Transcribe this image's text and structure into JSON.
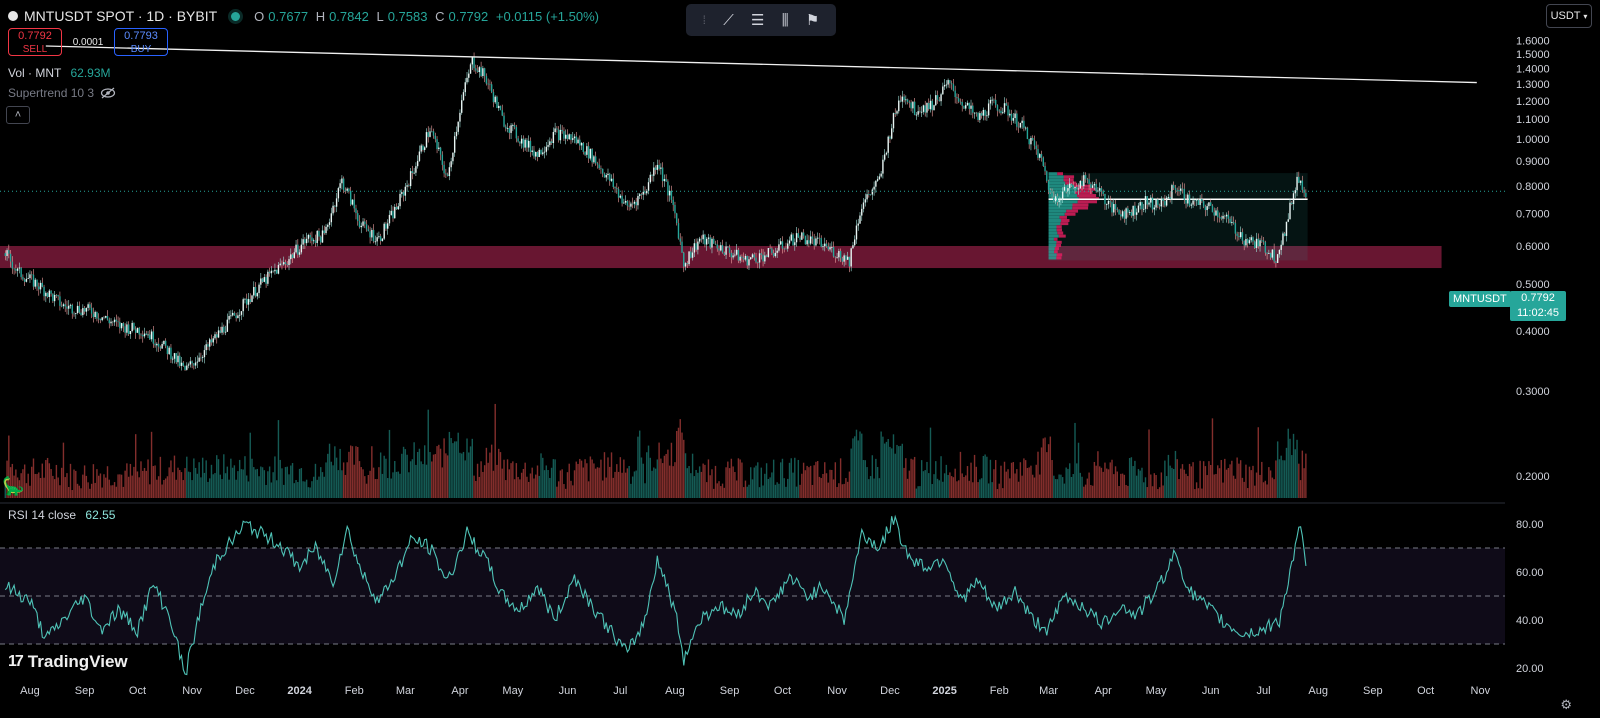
{
  "header": {
    "symbol": "MNTUSDT SPOT · 1D · BYBIT",
    "open_label": "O",
    "open": "0.7677",
    "high_label": "H",
    "high": "0.7842",
    "low_label": "L",
    "low": "0.7583",
    "close_label": "C",
    "close": "0.7792",
    "change": "+0.0115 (+1.50%)"
  },
  "trade": {
    "sell_price": "0.7792",
    "sell_label": "SELL",
    "spread": "0.0001",
    "buy_price": "0.7793",
    "buy_label": "BUY"
  },
  "volume_indicator": {
    "label": "Vol · MNT",
    "value": "62.93M"
  },
  "supertrend_label": "Supertrend 10 3",
  "currency": "USDT",
  "price_tag": {
    "symbol": "MNTUSDT",
    "price": "0.7792",
    "countdown": "11:02:45"
  },
  "rsi_indicator": {
    "label": "RSI 14 close",
    "value": "62.55"
  },
  "brand": "TradingView",
  "colors": {
    "up": "#26a69a",
    "down": "#ef5350",
    "support_zone": "#7a1a3a",
    "background": "#000000"
  },
  "chart_data": [
    {
      "type": "candlestick",
      "title": "MNTUSDT SPOT · 1D · BYBIT",
      "y_scale": "log",
      "ylim": [
        0.18,
        1.7
      ],
      "y_ticks": [
        0.2,
        0.3,
        0.4,
        0.5,
        0.6,
        0.7,
        0.8,
        0.9,
        1.0,
        1.1,
        1.2,
        1.3,
        1.4,
        1.5,
        1.6
      ],
      "y_tick_labels": [
        "0.2000",
        "0.3000",
        "0.4000",
        "0.5000",
        "0.6000",
        "0.7000",
        "0.8000",
        "0.9000",
        "1.0000",
        "1.1000",
        "1.2000",
        "1.3000",
        "1.4000",
        "1.5000",
        "1.6000"
      ],
      "x_tick_labels": [
        "Aug",
        "Sep",
        "Oct",
        "Nov",
        "Dec",
        "2024",
        "Feb",
        "Mar",
        "Apr",
        "May",
        "Jun",
        "Jul",
        "Aug",
        "Sep",
        "Oct",
        "Nov",
        "Dec",
        "2025",
        "Feb",
        "Mar",
        "Apr",
        "May",
        "Jun",
        "Jul",
        "Aug",
        "Sep",
        "Oct",
        "Nov"
      ],
      "x_tick_dates": [
        "2023-08-01",
        "2023-09-01",
        "2023-10-01",
        "2023-11-01",
        "2023-12-01",
        "2024-01-01",
        "2024-02-01",
        "2024-03-01",
        "2024-04-01",
        "2024-05-01",
        "2024-06-01",
        "2024-07-01",
        "2024-08-01",
        "2024-09-01",
        "2024-10-01",
        "2024-11-01",
        "2024-12-01",
        "2025-01-01",
        "2025-02-01",
        "2025-03-01",
        "2025-04-01",
        "2025-05-01",
        "2025-06-01",
        "2025-07-01",
        "2025-08-01",
        "2025-09-01",
        "2025-10-01",
        "2025-11-01"
      ],
      "xlim": [
        "2023-07-15",
        "2025-11-15"
      ],
      "price_series": [
        [
          "2023-07-18",
          0.58
        ],
        [
          "2023-07-25",
          0.53
        ],
        [
          "2023-08-05",
          0.5
        ],
        [
          "2023-08-20",
          0.45
        ],
        [
          "2023-09-05",
          0.44
        ],
        [
          "2023-09-20",
          0.41
        ],
        [
          "2023-10-05",
          0.4
        ],
        [
          "2023-10-20",
          0.36
        ],
        [
          "2023-10-28",
          0.33
        ],
        [
          "2023-11-10",
          0.37
        ],
        [
          "2023-11-25",
          0.43
        ],
        [
          "2023-12-10",
          0.5
        ],
        [
          "2023-12-25",
          0.56
        ],
        [
          "2024-01-05",
          0.62
        ],
        [
          "2024-01-15",
          0.63
        ],
        [
          "2024-01-25",
          0.82
        ],
        [
          "2024-02-05",
          0.66
        ],
        [
          "2024-02-15",
          0.62
        ],
        [
          "2024-02-25",
          0.72
        ],
        [
          "2024-03-05",
          0.85
        ],
        [
          "2024-03-15",
          1.05
        ],
        [
          "2024-03-25",
          0.82
        ],
        [
          "2024-04-02",
          1.2
        ],
        [
          "2024-04-08",
          1.45
        ],
        [
          "2024-04-15",
          1.35
        ],
        [
          "2024-04-25",
          1.1
        ],
        [
          "2024-05-05",
          1.0
        ],
        [
          "2024-05-15",
          0.93
        ],
        [
          "2024-05-25",
          1.03
        ],
        [
          "2024-06-05",
          1.0
        ],
        [
          "2024-06-15",
          0.92
        ],
        [
          "2024-06-25",
          0.82
        ],
        [
          "2024-07-05",
          0.72
        ],
        [
          "2024-07-15",
          0.78
        ],
        [
          "2024-07-22",
          0.9
        ],
        [
          "2024-08-01",
          0.7
        ],
        [
          "2024-08-06",
          0.55
        ],
        [
          "2024-08-15",
          0.62
        ],
        [
          "2024-08-25",
          0.6
        ],
        [
          "2024-09-10",
          0.56
        ],
        [
          "2024-09-25",
          0.58
        ],
        [
          "2024-10-10",
          0.63
        ],
        [
          "2024-10-25",
          0.6
        ],
        [
          "2024-11-08",
          0.56
        ],
        [
          "2024-11-15",
          0.73
        ],
        [
          "2024-11-25",
          0.82
        ],
        [
          "2024-12-03",
          1.1
        ],
        [
          "2024-12-08",
          1.25
        ],
        [
          "2024-12-15",
          1.15
        ],
        [
          "2024-12-25",
          1.18
        ],
        [
          "2025-01-03",
          1.3
        ],
        [
          "2025-01-10",
          1.2
        ],
        [
          "2025-01-20",
          1.1
        ],
        [
          "2025-01-28",
          1.18
        ],
        [
          "2025-02-05",
          1.15
        ],
        [
          "2025-02-15",
          1.05
        ],
        [
          "2025-02-25",
          0.9
        ],
        [
          "2025-03-03",
          0.75
        ],
        [
          "2025-03-10",
          0.78
        ],
        [
          "2025-03-20",
          0.82
        ],
        [
          "2025-03-28",
          0.8
        ],
        [
          "2025-04-05",
          0.72
        ],
        [
          "2025-04-15",
          0.7
        ],
        [
          "2025-04-25",
          0.74
        ],
        [
          "2025-05-05",
          0.73
        ],
        [
          "2025-05-12",
          0.8
        ],
        [
          "2025-05-20",
          0.74
        ],
        [
          "2025-06-01",
          0.72
        ],
        [
          "2025-06-10",
          0.68
        ],
        [
          "2025-06-20",
          0.62
        ],
        [
          "2025-07-01",
          0.6
        ],
        [
          "2025-07-08",
          0.57
        ],
        [
          "2025-07-14",
          0.66
        ],
        [
          "2025-07-20",
          0.83
        ],
        [
          "2025-07-25",
          0.7792
        ]
      ],
      "trendline": [
        [
          "2023-08-10",
          1.56
        ],
        [
          "2025-10-30",
          1.31
        ]
      ],
      "support_zone": {
        "from": "2023-07-15",
        "to": "2025-10-10",
        "low": 0.54,
        "high": 0.6
      },
      "volume_profile_range": {
        "from": "2025-03-01",
        "to": "2025-07-26",
        "low": 0.56,
        "high": 0.85,
        "poc": 0.75
      },
      "last_price": 0.7792
    },
    {
      "type": "line",
      "title": "RSI 14 close",
      "ylim": [
        15,
        85
      ],
      "y_ticks": [
        20,
        40,
        60,
        80
      ],
      "y_tick_labels": [
        "20.00",
        "40.00",
        "60.00",
        "80.00"
      ],
      "reference_lines": [
        30,
        50,
        70
      ],
      "series": [
        [
          "2023-07-18",
          54
        ],
        [
          "2023-08-01",
          48
        ],
        [
          "2023-08-10",
          32
        ],
        [
          "2023-08-20",
          40
        ],
        [
          "2023-09-01",
          50
        ],
        [
          "2023-09-10",
          36
        ],
        [
          "2023-09-20",
          44
        ],
        [
          "2023-10-01",
          36
        ],
        [
          "2023-10-10",
          55
        ],
        [
          "2023-10-20",
          40
        ],
        [
          "2023-10-28",
          17
        ],
        [
          "2023-11-05",
          42
        ],
        [
          "2023-11-15",
          66
        ],
        [
          "2023-11-25",
          74
        ],
        [
          "2023-12-01",
          80
        ],
        [
          "2023-12-10",
          76
        ],
        [
          "2023-12-20",
          72
        ],
        [
          "2024-01-01",
          62
        ],
        [
          "2024-01-10",
          70
        ],
        [
          "2024-01-20",
          56
        ],
        [
          "2024-01-28",
          78
        ],
        [
          "2024-02-05",
          60
        ],
        [
          "2024-02-15",
          48
        ],
        [
          "2024-02-25",
          60
        ],
        [
          "2024-03-05",
          74
        ],
        [
          "2024-03-15",
          70
        ],
        [
          "2024-03-25",
          56
        ],
        [
          "2024-04-05",
          76
        ],
        [
          "2024-04-15",
          66
        ],
        [
          "2024-04-25",
          50
        ],
        [
          "2024-05-05",
          44
        ],
        [
          "2024-05-15",
          54
        ],
        [
          "2024-05-25",
          40
        ],
        [
          "2024-06-05",
          58
        ],
        [
          "2024-06-15",
          46
        ],
        [
          "2024-06-25",
          36
        ],
        [
          "2024-07-05",
          26
        ],
        [
          "2024-07-15",
          40
        ],
        [
          "2024-07-22",
          66
        ],
        [
          "2024-08-01",
          44
        ],
        [
          "2024-08-06",
          24
        ],
        [
          "2024-08-15",
          40
        ],
        [
          "2024-08-25",
          46
        ],
        [
          "2024-09-05",
          42
        ],
        [
          "2024-09-15",
          52
        ],
        [
          "2024-09-25",
          46
        ],
        [
          "2024-10-05",
          58
        ],
        [
          "2024-10-15",
          50
        ],
        [
          "2024-10-25",
          54
        ],
        [
          "2024-11-05",
          40
        ],
        [
          "2024-11-15",
          76
        ],
        [
          "2024-11-25",
          70
        ],
        [
          "2024-12-03",
          82
        ],
        [
          "2024-12-12",
          66
        ],
        [
          "2024-12-22",
          62
        ],
        [
          "2025-01-01",
          66
        ],
        [
          "2025-01-10",
          48
        ],
        [
          "2025-01-20",
          56
        ],
        [
          "2025-01-30",
          44
        ],
        [
          "2025-02-10",
          52
        ],
        [
          "2025-02-20",
          40
        ],
        [
          "2025-03-01",
          36
        ],
        [
          "2025-03-10",
          50
        ],
        [
          "2025-03-20",
          46
        ],
        [
          "2025-04-01",
          38
        ],
        [
          "2025-04-10",
          46
        ],
        [
          "2025-04-20",
          42
        ],
        [
          "2025-05-01",
          52
        ],
        [
          "2025-05-12",
          68
        ],
        [
          "2025-05-20",
          52
        ],
        [
          "2025-06-01",
          44
        ],
        [
          "2025-06-10",
          38
        ],
        [
          "2025-06-20",
          34
        ],
        [
          "2025-07-01",
          36
        ],
        [
          "2025-07-10",
          40
        ],
        [
          "2025-07-18",
          66
        ],
        [
          "2025-07-22",
          79
        ],
        [
          "2025-07-25",
          62.55
        ]
      ]
    }
  ]
}
